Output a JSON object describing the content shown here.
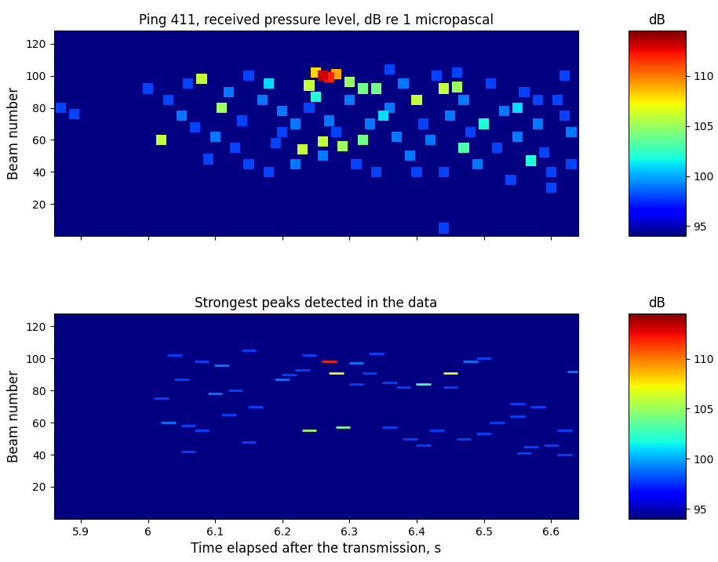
{
  "chart_data": [
    {
      "type": "heatmap",
      "title": "Ping 411, received pressure level, dB re 1 micropascal",
      "ylabel": "Beam number",
      "xlim": [
        5.86,
        6.64
      ],
      "ylim": [
        0,
        128
      ],
      "xticks": [
        5.9,
        6,
        6.1,
        6.2,
        6.3,
        6.4,
        6.5,
        6.6
      ],
      "yticks": [
        20,
        40,
        60,
        80,
        100,
        120
      ],
      "tick_labels": "y",
      "colorbar": {
        "label": "dB",
        "range": [
          94,
          114.5
        ],
        "ticks": [
          95,
          100,
          105,
          110
        ]
      },
      "cells": [
        [
          6.26,
          100,
          113
        ],
        [
          6.27,
          99,
          112
        ],
        [
          6.25,
          102,
          108
        ],
        [
          6.28,
          101,
          109
        ],
        [
          6.24,
          94,
          106
        ],
        [
          6.3,
          96,
          105
        ],
        [
          6.32,
          92,
          104
        ],
        [
          6.4,
          85,
          106
        ],
        [
          6.44,
          92,
          106
        ],
        [
          6.46,
          93,
          105
        ],
        [
          6.08,
          98,
          106
        ],
        [
          6.11,
          80,
          105
        ],
        [
          6.02,
          60,
          106
        ],
        [
          6.23,
          54,
          106
        ],
        [
          6.26,
          59,
          106
        ],
        [
          6.29,
          56,
          105
        ],
        [
          6.32,
          60,
          104
        ],
        [
          6.34,
          92,
          104
        ],
        [
          6.47,
          55,
          103
        ],
        [
          6.5,
          70,
          102
        ],
        [
          6.57,
          47,
          102
        ],
        [
          6.35,
          75,
          101
        ],
        [
          6.25,
          87,
          102
        ],
        [
          6.18,
          95,
          101
        ],
        [
          6.55,
          80,
          101
        ],
        [
          5.87,
          80,
          98
        ],
        [
          5.89,
          76,
          98
        ],
        [
          6.44,
          5,
          98
        ],
        [
          6.0,
          92,
          98
        ],
        [
          6.03,
          85,
          98
        ],
        [
          6.05,
          75,
          99
        ],
        [
          6.07,
          68,
          98
        ],
        [
          6.1,
          62,
          99
        ],
        [
          6.13,
          55,
          98
        ],
        [
          6.15,
          45,
          98
        ],
        [
          6.18,
          40,
          98
        ],
        [
          6.12,
          90,
          99
        ],
        [
          6.15,
          100,
          98
        ],
        [
          6.17,
          85,
          99
        ],
        [
          6.2,
          78,
          99
        ],
        [
          6.2,
          65,
          98
        ],
        [
          6.22,
          70,
          99
        ],
        [
          6.22,
          45,
          99
        ],
        [
          6.24,
          80,
          98
        ],
        [
          6.27,
          72,
          99
        ],
        [
          6.28,
          65,
          98
        ],
        [
          6.3,
          85,
          99
        ],
        [
          6.31,
          45,
          98
        ],
        [
          6.33,
          70,
          99
        ],
        [
          6.34,
          40,
          98
        ],
        [
          6.36,
          80,
          99
        ],
        [
          6.37,
          62,
          99
        ],
        [
          6.38,
          95,
          99
        ],
        [
          6.39,
          50,
          99
        ],
        [
          6.41,
          70,
          98
        ],
        [
          6.42,
          60,
          99
        ],
        [
          6.43,
          100,
          98
        ],
        [
          6.44,
          40,
          98
        ],
        [
          6.45,
          75,
          99
        ],
        [
          6.47,
          85,
          99
        ],
        [
          6.48,
          65,
          98
        ],
        [
          6.49,
          45,
          99
        ],
        [
          6.51,
          95,
          98
        ],
        [
          6.52,
          55,
          98
        ],
        [
          6.53,
          78,
          99
        ],
        [
          6.55,
          62,
          99
        ],
        [
          6.56,
          90,
          98
        ],
        [
          6.58,
          70,
          99
        ],
        [
          6.59,
          52,
          98
        ],
        [
          6.6,
          40,
          98
        ],
        [
          6.61,
          85,
          98
        ],
        [
          6.62,
          100,
          98
        ],
        [
          6.63,
          65,
          99
        ],
        [
          6.63,
          45,
          98
        ],
        [
          6.54,
          35,
          98
        ],
        [
          6.6,
          30,
          98
        ],
        [
          6.06,
          95,
          98
        ],
        [
          6.09,
          48,
          98
        ],
        [
          6.14,
          72,
          98
        ],
        [
          6.19,
          58,
          98
        ],
        [
          6.26,
          50,
          99
        ],
        [
          6.36,
          104,
          98
        ],
        [
          6.4,
          40,
          98
        ],
        [
          6.46,
          102,
          98
        ],
        [
          6.58,
          85,
          98
        ],
        [
          6.62,
          75,
          98
        ]
      ]
    },
    {
      "type": "heatmap",
      "title": "Strongest peaks detected in the data",
      "xlabel": "Time elapsed after the transmission, s",
      "ylabel": "Beam number",
      "xlim": [
        5.86,
        6.64
      ],
      "ylim": [
        0,
        128
      ],
      "xticks": [
        5.9,
        6,
        6.1,
        6.2,
        6.3,
        6.4,
        6.5,
        6.6
      ],
      "yticks": [
        20,
        40,
        60,
        80,
        100,
        120
      ],
      "colorbar": {
        "label": "dB",
        "range": [
          94,
          114.5
        ],
        "ticks": [
          95,
          100,
          105,
          110
        ]
      },
      "cells": [
        [
          6.04,
          102,
          98
        ],
        [
          6.08,
          98,
          98
        ],
        [
          6.11,
          96,
          99
        ],
        [
          6.05,
          87,
          98
        ],
        [
          6.02,
          75,
          98
        ],
        [
          6.1,
          78,
          99
        ],
        [
          6.13,
          80,
          98
        ],
        [
          6.03,
          60,
          99
        ],
        [
          6.06,
          58,
          98
        ],
        [
          6.08,
          55,
          98
        ],
        [
          6.12,
          65,
          98
        ],
        [
          6.15,
          48,
          98
        ],
        [
          6.2,
          87,
          99
        ],
        [
          6.21,
          90,
          98
        ],
        [
          6.23,
          93,
          98
        ],
        [
          6.24,
          102,
          98
        ],
        [
          6.27,
          98,
          112
        ],
        [
          6.28,
          91,
          107
        ],
        [
          6.31,
          97,
          99
        ],
        [
          6.33,
          91,
          98
        ],
        [
          6.36,
          85,
          98
        ],
        [
          6.38,
          82,
          98
        ],
        [
          6.41,
          84,
          103
        ],
        [
          6.45,
          91,
          107
        ],
        [
          6.48,
          98,
          99
        ],
        [
          6.5,
          100,
          98
        ],
        [
          6.24,
          55,
          105
        ],
        [
          6.29,
          57,
          104
        ],
        [
          6.31,
          84,
          98
        ],
        [
          6.36,
          57,
          98
        ],
        [
          6.39,
          50,
          98
        ],
        [
          6.41,
          46,
          98
        ],
        [
          6.43,
          55,
          98
        ],
        [
          6.47,
          50,
          98
        ],
        [
          6.5,
          53,
          98
        ],
        [
          6.52,
          60,
          98
        ],
        [
          6.55,
          72,
          98
        ],
        [
          6.58,
          70,
          98
        ],
        [
          6.56,
          41,
          98
        ],
        [
          6.6,
          46,
          98
        ],
        [
          6.62,
          40,
          98
        ],
        [
          6.635,
          92,
          99
        ],
        [
          6.62,
          55,
          98
        ],
        [
          6.34,
          103,
          98
        ],
        [
          6.15,
          105,
          98
        ],
        [
          6.16,
          70,
          98
        ],
        [
          6.45,
          82,
          98
        ],
        [
          6.55,
          64,
          98
        ],
        [
          6.57,
          45,
          98
        ],
        [
          6.06,
          42,
          98
        ]
      ]
    }
  ]
}
